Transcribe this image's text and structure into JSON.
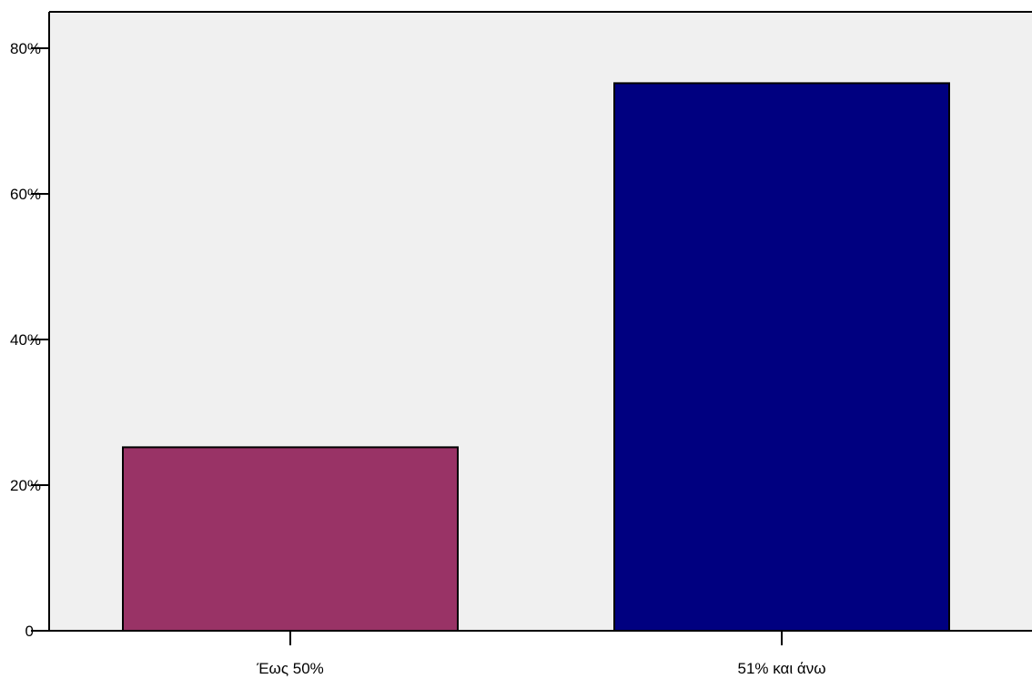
{
  "chart_data": {
    "type": "bar",
    "categories": [
      "Έως 50%",
      "51% και άνω"
    ],
    "values": [
      25.2,
      75.2
    ],
    "bar_colors": [
      "#993366",
      "#000080"
    ],
    "ylim": [
      0,
      85
    ],
    "yticks": [
      0,
      20,
      40,
      60,
      80
    ],
    "ytick_labels": [
      "0",
      "20%",
      "40%",
      "60%",
      "80%"
    ],
    "plot_background": "#f0f0f0",
    "grid": false,
    "legend": false
  }
}
